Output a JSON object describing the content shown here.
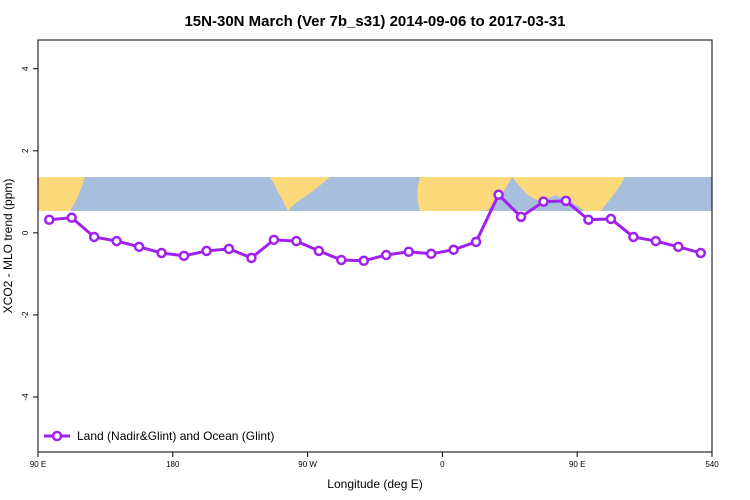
{
  "chart_data": {
    "type": "line",
    "title": "15N-30N March (Ver 7b_s31)   2014-09-06 to 2017-03-31",
    "x_label": "Longitude (deg E)",
    "y_label": "XCO2 - MLO trend (ppm)",
    "xlim": [
      90,
      540
    ],
    "ylim": [
      -5.34,
      4.7
    ],
    "xticks": [
      {
        "value": 90,
        "label": "90 E"
      },
      180,
      {
        "value": 270,
        "label": "90 W"
      },
      {
        "value": 360,
        "label": "0"
      },
      {
        "value": 450,
        "label": "90 E"
      },
      540
    ],
    "yticks": [
      -4,
      -2,
      0,
      2,
      4
    ],
    "legend": "bottom-left",
    "x": [
      97.5,
      112.5,
      127.5,
      142.5,
      157.5,
      172.5,
      187.5,
      202.5,
      217.5,
      232.5,
      247.5,
      262.5,
      277.5,
      292.5,
      307.5,
      322.5,
      337.5,
      352.5,
      367.5,
      382.5,
      397.5,
      412.5,
      427.5,
      442.5,
      457.5,
      472.5,
      487.5,
      502.5,
      517.5,
      532.5
    ],
    "series": [
      {
        "name": "Land (Nadir&Glint) and Ocean (Glint)",
        "color": "#a020f0",
        "values": [
          0.32,
          0.37,
          -0.1,
          -0.2,
          -0.34,
          -0.49,
          -0.56,
          -0.44,
          -0.39,
          -0.61,
          -0.17,
          -0.2,
          -0.44,
          -0.66,
          -0.68,
          -0.54,
          -0.46,
          -0.51,
          -0.41,
          -0.22,
          0.93,
          0.39,
          0.76,
          0.78,
          0.32,
          0.34,
          -0.1,
          -0.2,
          -0.34,
          -0.49
        ]
      }
    ]
  }
}
